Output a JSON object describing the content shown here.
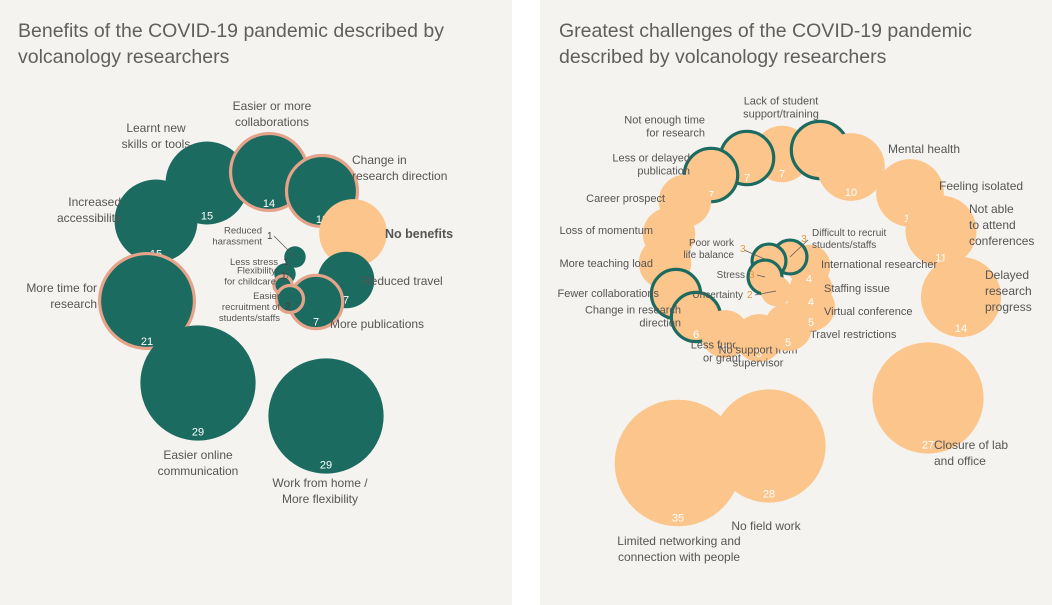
{
  "colors": {
    "background": "#f5f3ef",
    "benefit_fill": "#1c6b60",
    "benefit_ring": "#e5a38a",
    "challenge_fill": "#fbc58b",
    "challenge_ring": "#1c6b60",
    "text": "#555555",
    "value_on_dark": "#ffffff",
    "value_on_light": "#ffffff",
    "small_value": "#e8963f"
  },
  "chart_data": [
    {
      "type": "bubble",
      "title": "Benefits of the COVID-19 pandemic described by volcanology researchers",
      "size_metric": "number of responses",
      "encoding": "teal bubbles = benefits; salmon ring = highlighted item; orange bubble = no benefits",
      "items": [
        {
          "label": "Learnt new skills or tools",
          "lines": [
            "Learnt new",
            "skills or tools"
          ],
          "value": 15,
          "highlight": false,
          "kind": "benefit"
        },
        {
          "label": "Easier or more collaborations",
          "lines": [
            "Easier or more",
            "collaborations"
          ],
          "value": 14,
          "highlight": true,
          "kind": "benefit"
        },
        {
          "label": "Change in research direction",
          "lines": [
            "Change in",
            "research direction"
          ],
          "value": 12,
          "highlight": true,
          "kind": "benefit"
        },
        {
          "label": "No benefits",
          "lines": [
            "No benefits"
          ],
          "value": 10,
          "highlight": false,
          "kind": "none"
        },
        {
          "label": "Reduced travel",
          "lines": [
            "Reduced travel"
          ],
          "value": 7,
          "highlight": false,
          "kind": "benefit"
        },
        {
          "label": "More publications",
          "lines": [
            "More publications"
          ],
          "value": 7,
          "highlight": true,
          "kind": "benefit"
        },
        {
          "label": "Increased accessibility",
          "lines": [
            "Increased",
            "accessibility"
          ],
          "value": 15,
          "highlight": false,
          "kind": "benefit"
        },
        {
          "label": "More time for research",
          "lines": [
            "More time for",
            "research"
          ],
          "value": 21,
          "highlight": true,
          "kind": "benefit"
        },
        {
          "label": "Easier online communication",
          "lines": [
            "Easier online",
            "communication"
          ],
          "value": 29,
          "highlight": false,
          "kind": "benefit"
        },
        {
          "label": "Work from home / More flexibility",
          "lines": [
            "Work from home /",
            "More flexibility"
          ],
          "value": 29,
          "highlight": false,
          "kind": "benefit"
        },
        {
          "label": "Reduced harassment",
          "lines": [
            "Reduced",
            "harassment"
          ],
          "value": 1,
          "highlight": false,
          "kind": "benefit"
        },
        {
          "label": "Less stress",
          "lines": [
            "Less stress"
          ],
          "value": 1,
          "highlight": false,
          "kind": "benefit"
        },
        {
          "label": "Flexibility for childcare",
          "lines": [
            "Flexibility",
            "for childcare"
          ],
          "value": 1,
          "highlight": true,
          "kind": "benefit"
        },
        {
          "label": "Easier recruitment of students/staffs",
          "lines": [
            "Easier",
            "recruitment of",
            "students/staffs"
          ],
          "value": 2,
          "highlight": true,
          "kind": "benefit"
        }
      ]
    },
    {
      "type": "bubble",
      "title": "Greatest challenges of the COVID-19 pandemic described by volcanology researchers",
      "size_metric": "number of responses",
      "encoding": "orange bubbles = challenges; teal ring = highlighted item",
      "items": [
        {
          "label": "Lack of student support/training",
          "lines": [
            "Lack of student",
            "support/training"
          ],
          "value": 7,
          "highlight": false
        },
        {
          "label": "Childcare",
          "lines": [
            "Childcare"
          ],
          "value": 8,
          "highlight": true
        },
        {
          "label": "Not enough time for research",
          "lines": [
            "Not enough time",
            "for research"
          ],
          "value": 7,
          "highlight": true
        },
        {
          "label": "Less or delayed publication",
          "lines": [
            "Less or delayed",
            "publication"
          ],
          "value": 7,
          "highlight": true
        },
        {
          "label": "Mental health",
          "lines": [
            "Mental health"
          ],
          "value": 10,
          "highlight": false
        },
        {
          "label": "Feeling isolated",
          "lines": [
            "Feeling isolated"
          ],
          "value": 10,
          "highlight": false
        },
        {
          "label": "Not able to attend conferences",
          "lines": [
            "Not able",
            "to attend",
            "conferences"
          ],
          "value": 11,
          "highlight": false
        },
        {
          "label": "Delayed research progress",
          "lines": [
            "Delayed",
            "research",
            "progress"
          ],
          "value": 14,
          "highlight": false
        },
        {
          "label": "Career prospect",
          "lines": [
            "Career prospect"
          ],
          "value": 6,
          "highlight": false
        },
        {
          "label": "Loss of momentum",
          "lines": [
            "Loss of momentum"
          ],
          "value": 6,
          "highlight": false
        },
        {
          "label": "More teaching load",
          "lines": [
            "More teaching load"
          ],
          "value": 6,
          "highlight": false
        },
        {
          "label": "Fewer collaborations",
          "lines": [
            "Fewer collaborations"
          ],
          "value": 6,
          "highlight": true
        },
        {
          "label": "Change in research direction",
          "lines": [
            "Change in research",
            "direction"
          ],
          "value": 6,
          "highlight": true
        },
        {
          "label": "Less funding or grant",
          "lines": [
            "Less funding",
            "or grant"
          ],
          "value": 5,
          "highlight": false
        },
        {
          "label": "No support from supervisor",
          "lines": [
            "No support from",
            "supervisor"
          ],
          "value": 5,
          "highlight": false
        },
        {
          "label": "Travel restrictions",
          "lines": [
            "Travel restrictions"
          ],
          "value": 5,
          "highlight": false
        },
        {
          "label": "Virtual conference",
          "lines": [
            "Virtual conference"
          ],
          "value": 5,
          "highlight": false
        },
        {
          "label": "Staffing issue",
          "lines": [
            "Staffing issue"
          ],
          "value": 4,
          "highlight": false
        },
        {
          "label": "International researcher",
          "lines": [
            "International researcher"
          ],
          "value": 4,
          "highlight": false
        },
        {
          "label": "Difficult to recruit students/staffs",
          "lines": [
            "Difficult to recruit",
            "students/staffs"
          ],
          "value": 3,
          "highlight": true
        },
        {
          "label": "Poor work life balance",
          "lines": [
            "Poor work",
            "life balance"
          ],
          "value": 3,
          "highlight": true
        },
        {
          "label": "Stress",
          "lines": [
            "Stress"
          ],
          "value": 3,
          "highlight": true
        },
        {
          "label": "Uncertainty",
          "lines": [
            "Uncertainty"
          ],
          "value": 2,
          "highlight": false
        },
        {
          "label": "Closure of lab and office",
          "lines": [
            "Closure of lab",
            "and office"
          ],
          "value": 27,
          "highlight": false
        },
        {
          "label": "No field work",
          "lines": [
            "No field work"
          ],
          "value": 28,
          "highlight": false
        },
        {
          "label": "Limited networking and connection with people",
          "lines": [
            "Limited networking and",
            "connection with people"
          ],
          "value": 35,
          "highlight": false
        }
      ]
    }
  ]
}
